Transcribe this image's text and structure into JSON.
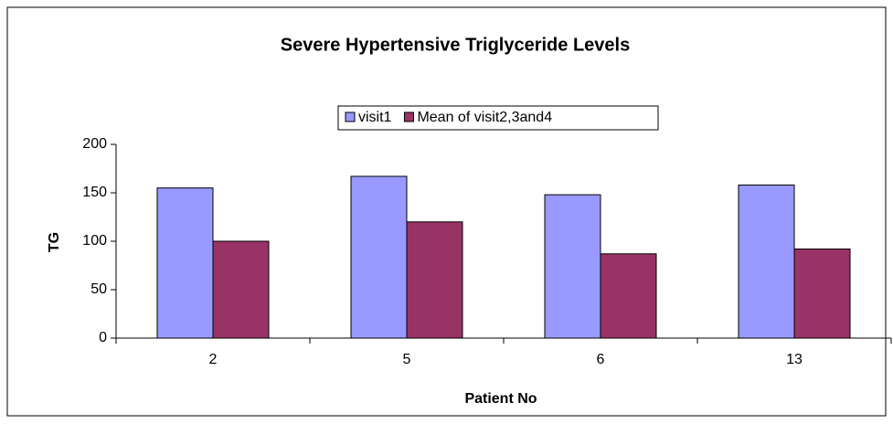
{
  "chart_data": {
    "type": "bar",
    "title": "Severe Hypertensive Triglyceride Levels",
    "x_label": "Patient No",
    "y_label": "TG",
    "categories": [
      "2",
      "5",
      "6",
      "13"
    ],
    "series": [
      {
        "name": "visit1",
        "color": "#9999ff",
        "values": [
          155,
          167,
          148,
          158
        ]
      },
      {
        "name": "Mean of visit2,3and4",
        "color": "#993366",
        "values": [
          100,
          120,
          87,
          92
        ]
      }
    ],
    "ylim": [
      0,
      200
    ],
    "yticks": [
      0,
      50,
      100,
      150,
      200
    ],
    "legend": "top"
  }
}
